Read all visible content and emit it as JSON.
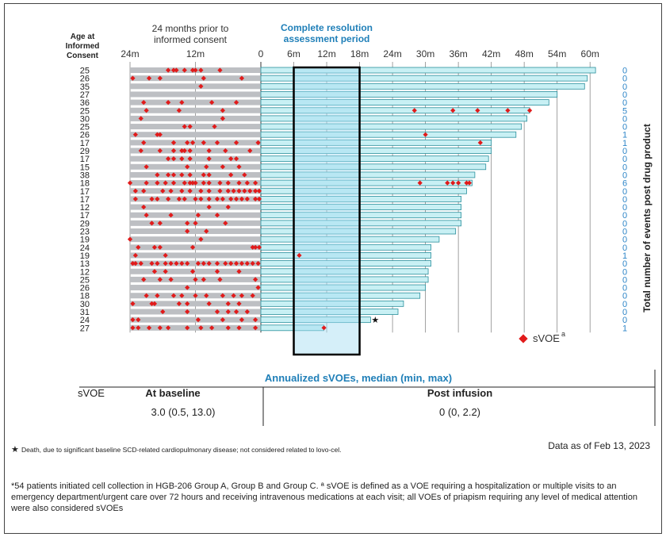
{
  "chart_data": {
    "type": "swimmer",
    "age_header": [
      "Age at",
      "Informed",
      "Consent"
    ],
    "prior_header": [
      "24 months prior to",
      "informed consent"
    ],
    "resolution_header": [
      "Complete resolution",
      "assessment period"
    ],
    "x_tick_labels_prior": [
      "24m",
      "12m",
      "0"
    ],
    "x_tick_labels_post": [
      "6m",
      "12m",
      "18m",
      "24m",
      "30m",
      "36m",
      "42m",
      "48m",
      "54m",
      "60m"
    ],
    "x_ticks_post_months": [
      6,
      12,
      18,
      24,
      30,
      36,
      42,
      48,
      54,
      60
    ],
    "prior_range_months": [
      -24,
      0
    ],
    "post_range_months": [
      0,
      61.5
    ],
    "resolution_window_months": [
      6,
      18
    ],
    "right_axis_label": "Total number of events post drug product",
    "legend": {
      "marker": "sVOE",
      "superscript": "a"
    },
    "patients": [
      {
        "age": "25",
        "followup": 61.0,
        "post_events": 0,
        "post_evt_months": [],
        "prior_evt_months": [
          -17,
          -16,
          -15.5,
          -14,
          -12.5,
          -12,
          -11,
          -7.5
        ]
      },
      {
        "age": "26",
        "followup": 59.5,
        "post_events": 0,
        "post_evt_months": [],
        "prior_evt_months": [
          -23.5,
          -20.5,
          -18.5,
          -10.5,
          -3.5
        ]
      },
      {
        "age": "35",
        "followup": 59.0,
        "post_events": 0,
        "post_evt_months": [],
        "prior_evt_months": [
          -11
        ]
      },
      {
        "age": "27",
        "followup": 54.0,
        "post_events": 0,
        "post_evt_months": [],
        "prior_evt_months": []
      },
      {
        "age": "36",
        "followup": 52.5,
        "post_events": 0,
        "post_evt_months": [],
        "prior_evt_months": [
          -21.5,
          -17,
          -14.5,
          -9,
          -4.5
        ]
      },
      {
        "age": "25",
        "followup": 49.0,
        "post_events": 5,
        "post_evt_months": [
          28,
          35,
          39.5,
          45,
          49
        ],
        "prior_evt_months": [
          -21,
          -15,
          -7
        ]
      },
      {
        "age": "30",
        "followup": 48.5,
        "post_events": 0,
        "post_evt_months": [],
        "prior_evt_months": [
          -22,
          -7
        ]
      },
      {
        "age": "25",
        "followup": 47.5,
        "post_events": 0,
        "post_evt_months": [],
        "prior_evt_months": [
          -14,
          -13,
          -8.5
        ]
      },
      {
        "age": "26",
        "followup": 46.5,
        "post_events": 1,
        "post_evt_months": [
          30
        ],
        "prior_evt_months": [
          -23,
          -19,
          -18.5
        ]
      },
      {
        "age": "17",
        "followup": 42.0,
        "post_events": 1,
        "post_evt_months": [
          40
        ],
        "prior_evt_months": [
          -21.5,
          -16,
          -13.5,
          -12.5,
          -10.5,
          -8,
          -4.5,
          -0.5
        ]
      },
      {
        "age": "29",
        "followup": 42.0,
        "post_events": 0,
        "post_evt_months": [],
        "prior_evt_months": [
          -22,
          -18.5,
          -16,
          -14.5,
          -14,
          -13,
          -9.5,
          -6.5,
          -2
        ]
      },
      {
        "age": "17",
        "followup": 41.5,
        "post_events": 0,
        "post_evt_months": [],
        "prior_evt_months": [
          -17,
          -16,
          -14.5,
          -13,
          -9.5,
          -5.5,
          -4.5
        ]
      },
      {
        "age": "15",
        "followup": 41.0,
        "post_events": 0,
        "post_evt_months": [],
        "prior_evt_months": [
          -21,
          -13.5,
          -10,
          -7,
          -4
        ]
      },
      {
        "age": "38",
        "followup": 39.0,
        "post_events": 0,
        "post_evt_months": [],
        "prior_evt_months": [
          -19,
          -17,
          -16,
          -14.5,
          -13,
          -10.5,
          -9.5,
          -5.5,
          -3
        ]
      },
      {
        "age": "18",
        "followup": 38.5,
        "post_events": 6,
        "post_evt_months": [
          29,
          34,
          35,
          36,
          37.5,
          38
        ],
        "prior_evt_months": [
          -24,
          -21,
          -19,
          -17.5,
          -16,
          -14,
          -13,
          -12.5,
          -12,
          -10.5,
          -9.5,
          -7.5,
          -6,
          -4,
          -2.5,
          -1
        ]
      },
      {
        "age": "17",
        "followup": 37.5,
        "post_events": 0,
        "post_evt_months": [],
        "prior_evt_months": [
          -23,
          -21.5,
          -18,
          -16.5,
          -14.5,
          -13,
          -11,
          -9.5,
          -7.5,
          -6,
          -5,
          -4,
          -3,
          -2,
          -1,
          -0.3
        ]
      },
      {
        "age": "17",
        "followup": 36.5,
        "post_events": 0,
        "post_evt_months": [],
        "prior_evt_months": [
          -23,
          -20,
          -19,
          -17,
          -15,
          -14,
          -12,
          -11,
          -9.5,
          -8,
          -7,
          -5.5,
          -4.5,
          -3.5,
          -2.5,
          -1,
          -0.3
        ]
      },
      {
        "age": "12",
        "followup": 36.5,
        "post_events": 0,
        "post_evt_months": [],
        "prior_evt_months": [
          -21.5,
          -9.5,
          -6
        ]
      },
      {
        "age": "17",
        "followup": 36.5,
        "post_events": 0,
        "post_evt_months": [],
        "prior_evt_months": [
          -21,
          -16.5,
          -11.5,
          -8
        ]
      },
      {
        "age": "29",
        "followup": 36.5,
        "post_events": 0,
        "post_evt_months": [],
        "prior_evt_months": [
          -20,
          -18.5,
          -13.5,
          -12,
          -6.5
        ]
      },
      {
        "age": "23",
        "followup": 35.5,
        "post_events": 0,
        "post_evt_months": [],
        "prior_evt_months": [
          -13.5,
          -10
        ]
      },
      {
        "age": "19",
        "followup": 32.5,
        "post_events": 0,
        "post_evt_months": [],
        "prior_evt_months": [
          -24,
          -11
        ]
      },
      {
        "age": "24",
        "followup": 31.0,
        "post_events": 0,
        "post_evt_months": [],
        "prior_evt_months": [
          -22.5,
          -19.5,
          -18.5,
          -12.5,
          -1.5,
          -1,
          -0.3
        ]
      },
      {
        "age": "19",
        "followup": 31.0,
        "post_events": 1,
        "post_evt_months": [
          7
        ],
        "prior_evt_months": [
          -23,
          -17.5
        ]
      },
      {
        "age": "13",
        "followup": 31.0,
        "post_events": 0,
        "post_evt_months": [],
        "prior_evt_months": [
          -23.5,
          -23,
          -22,
          -20,
          -19,
          -17.5,
          -16.5,
          -15.5,
          -14.5,
          -13.5,
          -11.5,
          -10.5,
          -9.5,
          -8,
          -6.5,
          -5.5,
          -4.5,
          -3.5,
          -2.5,
          -1.5,
          -0.5
        ]
      },
      {
        "age": "12",
        "followup": 30.5,
        "post_events": 0,
        "post_evt_months": [],
        "prior_evt_months": [
          -19.5,
          -17.5,
          -12.5,
          -8,
          -4
        ]
      },
      {
        "age": "25",
        "followup": 30.5,
        "post_events": 0,
        "post_evt_months": [],
        "prior_evt_months": [
          -21.5,
          -18.5,
          -16.5,
          -12,
          -10.5,
          -7.5,
          -1
        ]
      },
      {
        "age": "26",
        "followup": 30.0,
        "post_events": 0,
        "post_evt_months": [],
        "prior_evt_months": [
          -13.5,
          -0.5
        ]
      },
      {
        "age": "18",
        "followup": 29.0,
        "post_events": 0,
        "post_evt_months": [],
        "prior_evt_months": [
          -21,
          -19,
          -16,
          -14.5,
          -12,
          -10,
          -7,
          -5,
          -3.5,
          -1.5
        ]
      },
      {
        "age": "30",
        "followup": 26.0,
        "post_events": 0,
        "post_evt_months": [],
        "prior_evt_months": [
          -23.5,
          -20,
          -19.5,
          -15,
          -13.5,
          -9.5,
          -6,
          -4
        ]
      },
      {
        "age": "31",
        "followup": 25.0,
        "post_events": 0,
        "post_evt_months": [],
        "prior_evt_months": [
          -18,
          -13.5,
          -8,
          -6,
          -4.5,
          -2.5
        ]
      },
      {
        "age": "24",
        "followup": 20.0,
        "post_events": 0,
        "post_evt_months": [],
        "prior_evt_months": [
          -23.5,
          -22.5,
          -11.5,
          -7,
          -3.5,
          -1
        ],
        "death": true
      },
      {
        "age": "27",
        "followup": 11.5,
        "post_events": 1,
        "post_evt_months": [
          11.5
        ],
        "prior_evt_months": [
          -23.5,
          -22.5,
          -20.5,
          -18.5,
          -17,
          -13.5,
          -11,
          -9,
          -6,
          -4,
          -1
        ]
      }
    ]
  },
  "table": {
    "title": "Annualized sVOEs, median (min, max)",
    "row_label": "sVOE",
    "col1_header": "At baseline",
    "col1_value": "3.0 (0.5, 13.0)",
    "col2_header": "Post infusion",
    "col2_value": "0 (0, 2.2)"
  },
  "footnote_death": "Death, due to significant baseline SCD-related cardiopulmonary disease; not considered related to lovo-cel.",
  "data_as_of": "Data as of Feb 13, 2023",
  "footnote_main": "*54 patients initiated cell collection in HGB-206 Group A, Group B and Group C. ª sVOE is defined as a VOE requiring a hospitalization or multiple visits to an emergency department/urgent care over 72 hours and receiving intravenous medications at each visit; all VOEs of priapism requiring any level of medical attention were also considered sVOEs",
  "colors": {
    "prior_bar": "#bdbfc3",
    "post_bar": "#c8f0f4",
    "post_bar_stroke": "#2a8f9c",
    "resolution_fill": "#a6dcf2",
    "event": "#e11b1b",
    "accent_text": "#1f7fb8",
    "count_text": "#2f86c8",
    "gridline": "#8a8a8a"
  }
}
